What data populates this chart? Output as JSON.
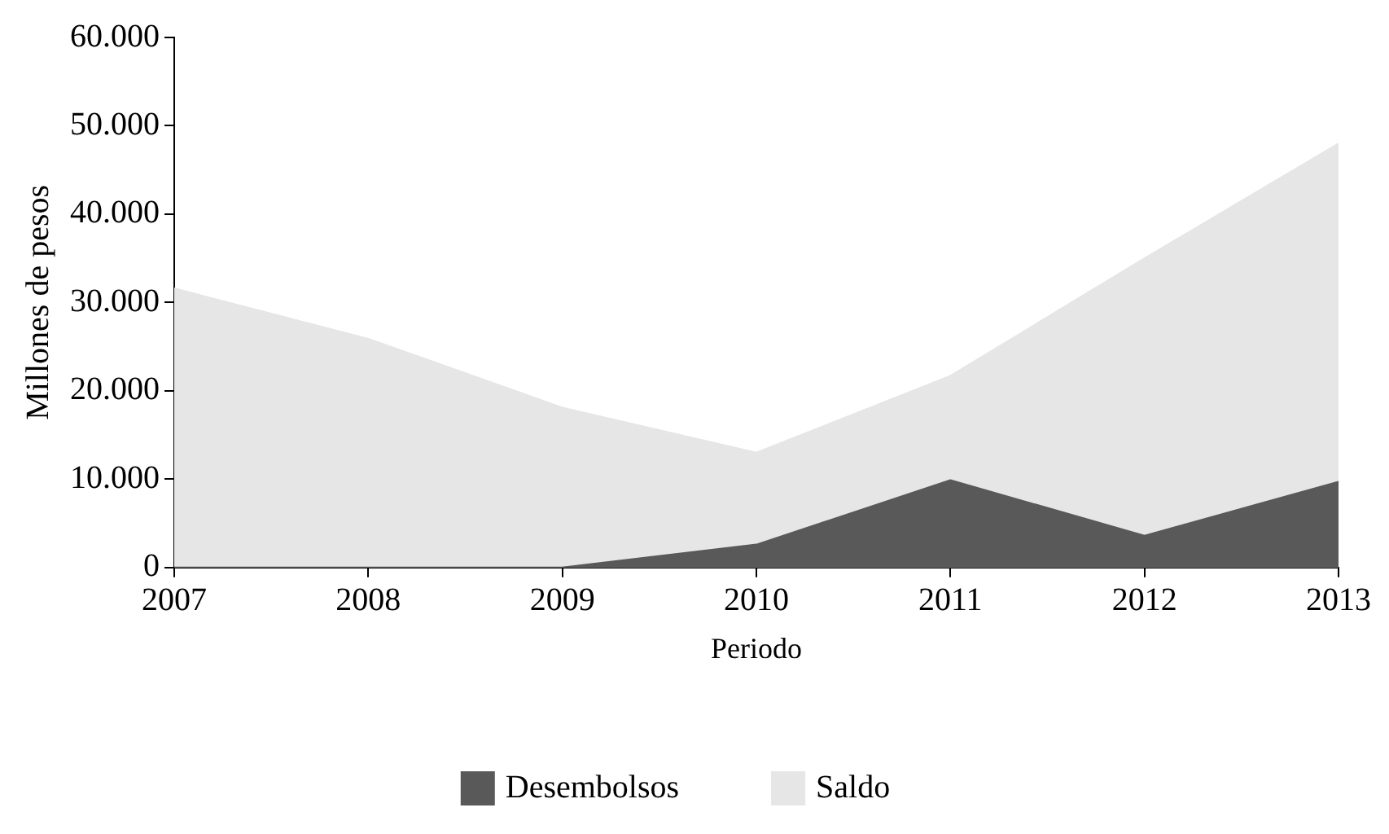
{
  "chart_data": {
    "type": "area",
    "xlabel": "Periodo",
    "ylabel": "Millones de pesos",
    "categories": [
      "2007",
      "2008",
      "2009",
      "2010",
      "2011",
      "2012",
      "2013"
    ],
    "series": [
      {
        "name": "Saldo",
        "color": "#e6e6e6",
        "values": [
          31600,
          25900,
          18100,
          13000,
          21700,
          35000,
          48000
        ]
      },
      {
        "name": "Desembolsos",
        "color": "#595959",
        "values": [
          0,
          0,
          0,
          2600,
          9900,
          3600,
          9700
        ]
      }
    ],
    "ylim": [
      0,
      60000
    ],
    "yticks": [
      {
        "value": 0,
        "label": "0"
      },
      {
        "value": 10000,
        "label": "10.000"
      },
      {
        "value": 20000,
        "label": "20.000"
      },
      {
        "value": 30000,
        "label": "30.000"
      },
      {
        "value": 40000,
        "label": "40.000"
      },
      {
        "value": 50000,
        "label": "50.000"
      },
      {
        "value": 60000,
        "label": "60.000"
      }
    ],
    "grid": false,
    "legend": "bottom"
  }
}
